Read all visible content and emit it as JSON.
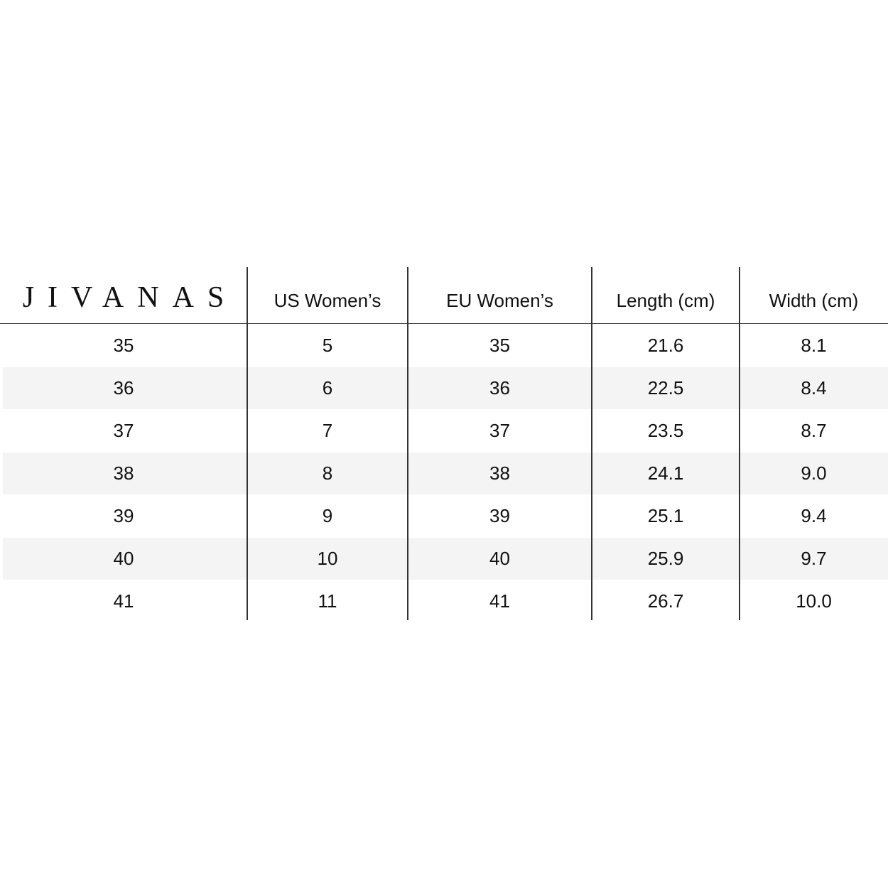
{
  "brand": "JIVANAS",
  "headers": [
    "US Women’s",
    "EU Women’s",
    "Length (cm)",
    "Width (cm)"
  ],
  "rows": [
    [
      "35",
      "5",
      "35",
      "21.6",
      "8.1"
    ],
    [
      "36",
      "6",
      "36",
      "22.5",
      "8.4"
    ],
    [
      "37",
      "7",
      "37",
      "23.5",
      "8.7"
    ],
    [
      "38",
      "8",
      "38",
      "24.1",
      "9.0"
    ],
    [
      "39",
      "9",
      "39",
      "25.1",
      "9.4"
    ],
    [
      "40",
      "10",
      "40",
      "25.9",
      "9.7"
    ],
    [
      "41",
      "11",
      "41",
      "26.7",
      "10.0"
    ]
  ],
  "colors": {
    "stripe": "#f4f4f4",
    "lines": "#333333"
  }
}
